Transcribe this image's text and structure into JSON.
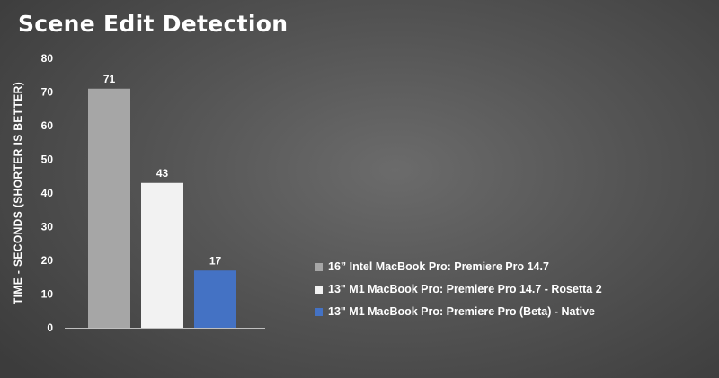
{
  "chart_data": {
    "type": "bar",
    "title": "Scene Edit Detection",
    "ylabel": "TIME - SECONDS (SHORTER IS BETTER)",
    "ylim": [
      0,
      80
    ],
    "yticks": [
      0,
      10,
      20,
      30,
      40,
      50,
      60,
      70,
      80
    ],
    "grid": false,
    "legend_position": "right",
    "series": [
      {
        "name": "16” Intel MacBook Pro: Premiere Pro 14.7",
        "value": 71,
        "color": "#a6a6a6"
      },
      {
        "name": "13\" M1 MacBook Pro: Premiere Pro 14.7 - Rosetta 2",
        "value": 43,
        "color": "#f2f2f2"
      },
      {
        "name": "13\" M1 MacBook Pro: Premiere Pro (Beta) - Native",
        "value": 17,
        "color": "#4472c4"
      }
    ]
  }
}
